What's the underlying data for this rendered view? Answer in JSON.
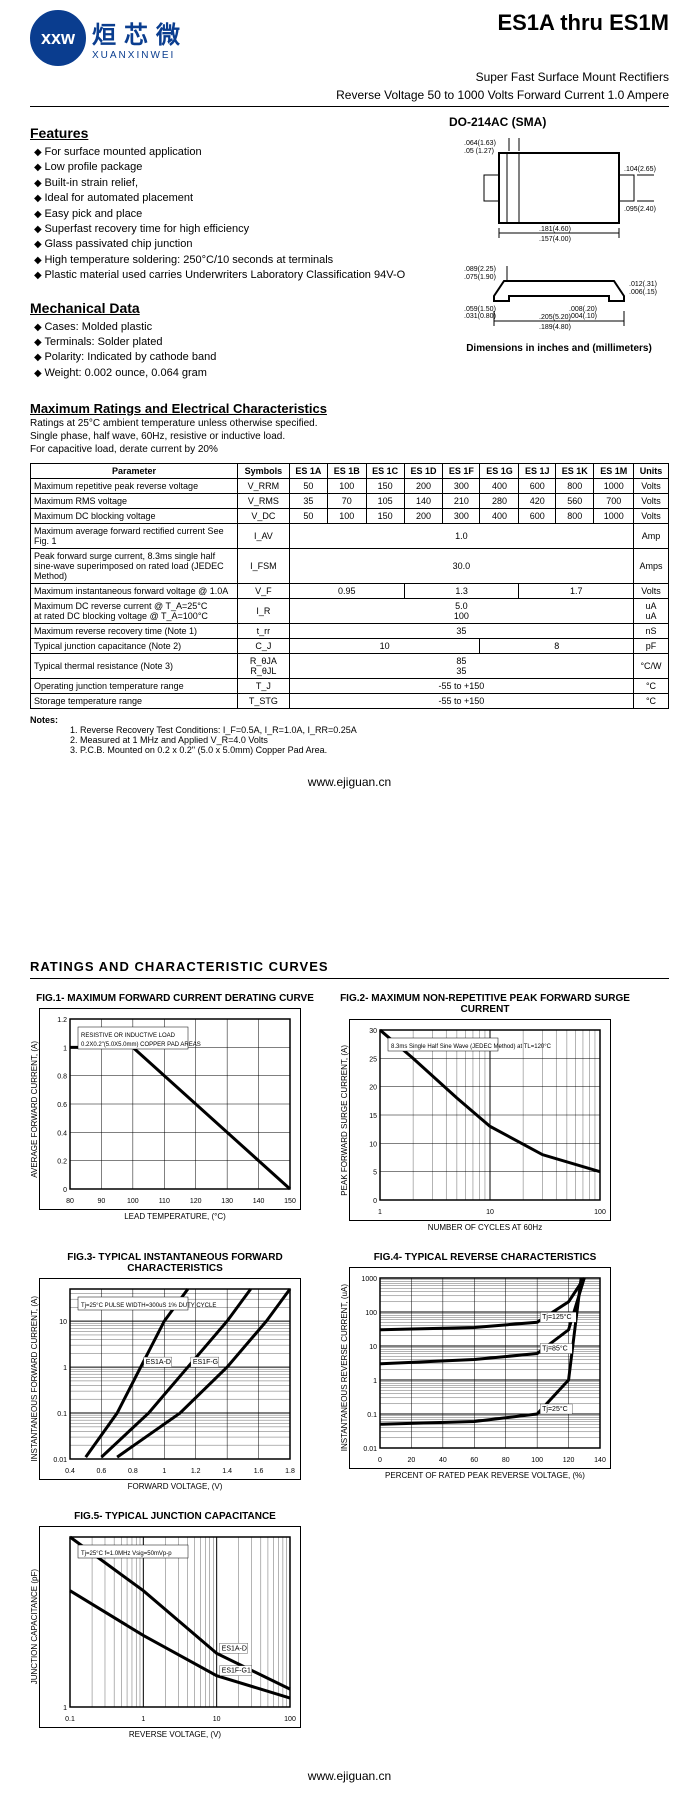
{
  "logo": {
    "cn": "烜芯微",
    "en": "XUANXINWEI",
    "mark": "xxw"
  },
  "header": {
    "title": "ES1A thru ES1M",
    "subtitle1": "Super Fast Surface Mount Rectifiers",
    "subtitle2": "Reverse Voltage 50 to 1000 Volts   Forward Current 1.0 Ampere"
  },
  "features": {
    "title": "Features",
    "items": [
      "For surface mounted application",
      "Low profile package",
      "Built-in strain relief,",
      "Ideal for automated placement",
      "Easy pick and place",
      "Superfast recovery time for high efficiency",
      "Glass passivated chip junction",
      "High temperature soldering: 250°C/10 seconds at terminals",
      "Plastic material used carries Underwriters Laboratory Classification 94V-O"
    ]
  },
  "mechanical": {
    "title": "Mechanical Data",
    "items": [
      "Cases: Molded plastic",
      "Terminals: Solder plated",
      "Polarity: Indicated by cathode band",
      "Weight: 0.002 ounce, 0.064 gram"
    ]
  },
  "package": {
    "title": "DO-214AC (SMA)",
    "dim_note": "Dimensions in inches and (millimeters)",
    "dims": {
      "a": ".064(1.63)",
      "b": ".05 (1.27)",
      "c": ".104(2.65)",
      "d": ".095(2.40)",
      "e": ".181(4.60)",
      "f": ".157(4.00)",
      "g": ".089(2.25)",
      "h": ".075(1.90)",
      "i": ".012(.31)",
      "j": ".006(.15)",
      "k": ".008(.20)",
      "l": ".004(.10)",
      "m": ".059(1.50)",
      "n": ".031(0.80)",
      "o": ".205(5.20)",
      "p": ".189(4.80)"
    }
  },
  "ratings": {
    "title": "Maximum Ratings and Electrical Characteristics",
    "sub1": "Ratings at 25°C ambient temperature unless otherwise specified.",
    "sub2": "Single phase, half wave, 60Hz, resistive or inductive load.",
    "sub3": "For capacitive load, derate current by 20%"
  },
  "table": {
    "columns": [
      "Parameter",
      "Symbols",
      "ES 1A",
      "ES 1B",
      "ES 1C",
      "ES 1D",
      "ES 1F",
      "ES 1G",
      "ES 1J",
      "ES 1K",
      "ES 1M",
      "Units"
    ],
    "rows": [
      {
        "p": "Maximum repetitive peak reverse voltage",
        "s": "V_RRM",
        "v": [
          "50",
          "100",
          "150",
          "200",
          "300",
          "400",
          "600",
          "800",
          "1000"
        ],
        "u": "Volts"
      },
      {
        "p": "Maximum RMS voltage",
        "s": "V_RMS",
        "v": [
          "35",
          "70",
          "105",
          "140",
          "210",
          "280",
          "420",
          "560",
          "700"
        ],
        "u": "Volts"
      },
      {
        "p": "Maximum DC blocking voltage",
        "s": "V_DC",
        "v": [
          "50",
          "100",
          "150",
          "200",
          "300",
          "400",
          "600",
          "800",
          "1000"
        ],
        "u": "Volts"
      },
      {
        "p": "Maximum average forward rectified current See Fig. 1",
        "s": "I_AV",
        "span": "1.0",
        "u": "Amp"
      },
      {
        "p": "Peak forward surge current, 8.3ms single half sine-wave superimposed on rated load (JEDEC Method)",
        "s": "I_FSM",
        "span": "30.0",
        "u": "Amps"
      },
      {
        "p": "Maximum instantaneous forward voltage @ 1.0A",
        "s": "V_F",
        "groups": [
          [
            "0.95",
            3
          ],
          [
            "1.3",
            3
          ],
          [
            "1.7",
            3
          ]
        ],
        "u": "Volts"
      },
      {
        "p": "Maximum DC reverse current          @ T_A=25°C\nat rated DC blocking voltage           @ T_A=100°C",
        "s": "I_R",
        "span": "5.0\n100",
        "u": "uA\nuA"
      },
      {
        "p": "Maximum reverse recovery time (Note 1)",
        "s": "t_rr",
        "span": "35",
        "u": "nS"
      },
      {
        "p": "Typical junction capacitance (Note 2)",
        "s": "C_J",
        "groups": [
          [
            "10",
            5
          ],
          [
            "8",
            4
          ]
        ],
        "u": "pF"
      },
      {
        "p": "Typical thermal resistance (Note 3)",
        "s": "R_θJA\nR_θJL",
        "span": "85\n35",
        "u": "°C/W"
      },
      {
        "p": "Operating junction temperature range",
        "s": "T_J",
        "span": "-55 to +150",
        "u": "°C"
      },
      {
        "p": "Storage temperature range",
        "s": "T_STG",
        "span": "-55 to +150",
        "u": "°C"
      }
    ]
  },
  "notes": {
    "label": "Notes:",
    "items": [
      "1. Reverse Recovery Test Conditions: I_F=0.5A, I_R=1.0A, I_RR=0.25A",
      "2. Measured at 1 MHz and Applied V_R=4.0 Volts",
      "3. P.C.B. Mounted on 0.2 x 0.2\" (5.0 x 5.0mm) Copper Pad Area."
    ]
  },
  "footer_url": "www.ejiguan.cn",
  "curves": {
    "title": "RATINGS AND CHARACTERISTIC CURVES",
    "charts": [
      {
        "title": "FIG.1- MAXIMUM FORWARD CURRENT DERATING CURVE",
        "xlabel": "LEAD TEMPERATURE, (°C)",
        "ylabel": "AVERAGE FORWARD CURRENT, (A)",
        "type": "line",
        "xmin": 80,
        "xmax": 150,
        "xtick": 10,
        "ymin": 0,
        "ymax": 1.2,
        "ytick": 0.2,
        "annotations": [
          "RESISTIVE OR INDUCTIVE LOAD",
          "0.2X0.2\"(5.0X5.0mm) COPPER PAD AREAS"
        ],
        "series": [
          {
            "color": "#000",
            "width": 3,
            "points": [
              [
                80,
                1.0
              ],
              [
                100,
                1.0
              ],
              [
                150,
                0.0
              ]
            ]
          }
        ],
        "bg": "#fff",
        "grid": "#000"
      },
      {
        "title": "FIG.2- MAXIMUM NON-REPETITIVE PEAK FORWARD SURGE CURRENT",
        "xlabel": "NUMBER OF CYCLES AT 60Hz",
        "ylabel": "PEAK FORWARD SURGE CURRENT, (A)",
        "type": "line-logx",
        "xmin": 1,
        "xmax": 100,
        "ymin": 0,
        "ymax": 30,
        "ytick": 5,
        "annotations": [
          "8.3ms Single Half Sine Wave (JEDEC Method) at TL=120°C"
        ],
        "series": [
          {
            "color": "#000",
            "width": 3,
            "points": [
              [
                1,
                30
              ],
              [
                2,
                25
              ],
              [
                5,
                18
              ],
              [
                10,
                13
              ],
              [
                30,
                8
              ],
              [
                100,
                5
              ]
            ]
          }
        ],
        "bg": "#fff",
        "grid": "#000"
      },
      {
        "title": "FIG.3- TYPICAL INSTANTANEOUS FORWARD CHARACTERISTICS",
        "xlabel": "FORWARD VOLTAGE, (V)",
        "ylabel": "INSTANTANEOUS FORWARD CURRENT, (A)",
        "type": "line-logy",
        "xmin": 0.4,
        "xmax": 1.8,
        "xtick": 0.2,
        "ymin": 0.01,
        "ymax": 50,
        "annotations": [
          "Tj=25°C PULSE WIDTH=300uS 1% DUTY CYCLE"
        ],
        "series": [
          {
            "color": "#000",
            "width": 3,
            "label": "ES1A-D",
            "points": [
              [
                0.5,
                0.011
              ],
              [
                0.7,
                0.1
              ],
              [
                0.85,
                1
              ],
              [
                1.0,
                10
              ],
              [
                1.15,
                50
              ]
            ]
          },
          {
            "color": "#000",
            "width": 3,
            "label": "ES1F-G",
            "points": [
              [
                0.6,
                0.011
              ],
              [
                0.9,
                0.1
              ],
              [
                1.15,
                1
              ],
              [
                1.4,
                10
              ],
              [
                1.55,
                50
              ]
            ]
          },
          {
            "color": "#000",
            "width": 3,
            "points": [
              [
                0.7,
                0.011
              ],
              [
                1.1,
                0.1
              ],
              [
                1.4,
                1
              ],
              [
                1.65,
                10
              ],
              [
                1.8,
                50
              ]
            ]
          }
        ],
        "bg": "#fff",
        "grid": "#000"
      },
      {
        "title": "FIG.4- TYPICAL REVERSE CHARACTERISTICS",
        "xlabel": "PERCENT OF RATED PEAK REVERSE VOLTAGE, (%)",
        "ylabel": "INSTANTANEOUS REVERSE CURRENT, (uA)",
        "type": "line-logy",
        "xmin": 0,
        "xmax": 140,
        "xtick": 20,
        "ymin": 0.01,
        "ymax": 1000,
        "series": [
          {
            "color": "#000",
            "width": 3,
            "label": "Tj=125°C",
            "points": [
              [
                0,
                30
              ],
              [
                60,
                35
              ],
              [
                100,
                50
              ],
              [
                120,
                200
              ],
              [
                130,
                1000
              ]
            ]
          },
          {
            "color": "#000",
            "width": 3,
            "label": "Tj=85°C",
            "points": [
              [
                0,
                3
              ],
              [
                60,
                4
              ],
              [
                100,
                6
              ],
              [
                120,
                30
              ],
              [
                130,
                1000
              ]
            ]
          },
          {
            "color": "#000",
            "width": 3,
            "label": "Tj=25°C",
            "points": [
              [
                0,
                0.05
              ],
              [
                60,
                0.06
              ],
              [
                100,
                0.1
              ],
              [
                120,
                1
              ],
              [
                128,
                1000
              ]
            ]
          }
        ],
        "bg": "#fff",
        "grid": "#000"
      },
      {
        "title": "FIG.5- TYPICAL JUNCTION CAPACITANCE",
        "xlabel": "REVERSE VOLTAGE, (V)",
        "ylabel": "JUNCTION CAPACITANCE (pF)",
        "type": "line-logxy",
        "xmin": 0.1,
        "xmax": 100,
        "ymin": 1,
        "ymax": 20,
        "annotations": [
          "Tj=25°C f=1.0MHz Vsig=50mVp-p"
        ],
        "series": [
          {
            "color": "#000",
            "width": 3,
            "label": "ES1A-D",
            "points": [
              [
                0.1,
                20
              ],
              [
                1,
                14
              ],
              [
                10,
                7
              ],
              [
                100,
                3
              ]
            ]
          },
          {
            "color": "#000",
            "width": 3,
            "label": "ES1F-G1",
            "points": [
              [
                0.1,
                14
              ],
              [
                1,
                9
              ],
              [
                10,
                4.5
              ],
              [
                100,
                2
              ]
            ]
          }
        ],
        "bg": "#fff",
        "grid": "#000"
      }
    ]
  }
}
